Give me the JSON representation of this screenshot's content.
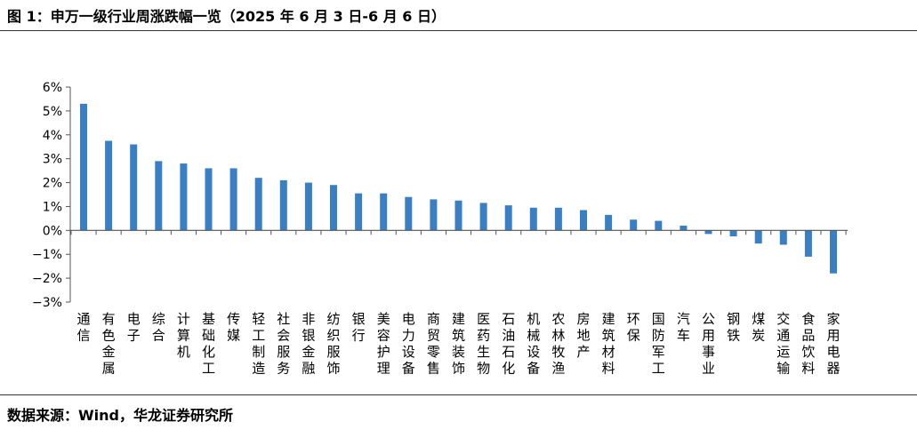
{
  "figure": {
    "title": "图 1：申万一级行业周涨跌幅一览（2025 年 6 月 3 日-6 月 6 日）",
    "source": "数据来源：Wind，华龙证券研究所"
  },
  "colors": {
    "bar": "#3a7fc4",
    "axis": "#555555"
  },
  "chart_data": {
    "type": "bar",
    "title": "",
    "xlabel": "",
    "ylabel": "",
    "ylim": [
      -3,
      6
    ],
    "yticks": [
      6,
      5,
      4,
      3,
      2,
      1,
      0,
      -1,
      -2,
      -3
    ],
    "ytick_labels": [
      "6%",
      "5%",
      "4%",
      "3%",
      "2%",
      "1%",
      "0%",
      "−1%",
      "−2%",
      "−3%"
    ],
    "grid": false,
    "legend": "none",
    "categories": [
      "通信",
      "有色金属",
      "电子",
      "综合",
      "计算机",
      "基础化工",
      "传媒",
      "轻工制造",
      "社会服务",
      "非银金融",
      "纺织服饰",
      "银行",
      "美容护理",
      "电力设备",
      "商贸零售",
      "建筑装饰",
      "医药生物",
      "石油石化",
      "机械设备",
      "农林牧渔",
      "房地产",
      "建筑材料",
      "环保",
      "国防军工",
      "汽车",
      "公用事业",
      "钢铁",
      "煤炭",
      "交通运输",
      "食品饮料",
      "家用电器"
    ],
    "values": [
      5.3,
      3.75,
      3.6,
      2.9,
      2.8,
      2.6,
      2.6,
      2.2,
      2.1,
      2.0,
      1.9,
      1.55,
      1.55,
      1.4,
      1.3,
      1.25,
      1.15,
      1.05,
      0.95,
      0.95,
      0.85,
      0.65,
      0.45,
      0.4,
      0.2,
      -0.15,
      -0.25,
      -0.55,
      -0.6,
      -1.1,
      -1.8
    ]
  }
}
